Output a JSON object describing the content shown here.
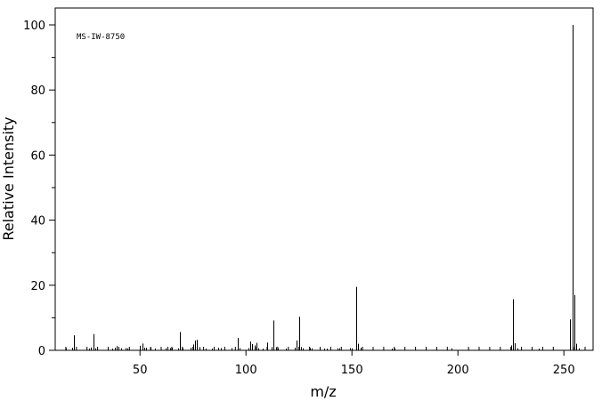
{
  "chart_data": {
    "type": "bar",
    "title": "",
    "annotation": "MS-IW-8750",
    "xlabel": "m/z",
    "ylabel": "Relative Intensity",
    "xlim": [
      10,
      263
    ],
    "ylim": [
      0,
      105
    ],
    "x_ticks": [
      50,
      100,
      150,
      200,
      250
    ],
    "x_tick_labels": [
      "50",
      "100",
      "150",
      "200",
      "250"
    ],
    "y_ticks": [
      0,
      20,
      40,
      60,
      80,
      100
    ],
    "y_tick_labels": [
      "0",
      "20",
      "40",
      "60",
      "80",
      "100"
    ],
    "grid": false,
    "bar_color": "#000000",
    "peaks": [
      {
        "mz": 15,
        "intensity": 0.6
      },
      {
        "mz": 18,
        "intensity": 0.8
      },
      {
        "mz": 19,
        "intensity": 4.6
      },
      {
        "mz": 26,
        "intensity": 0.5
      },
      {
        "mz": 27,
        "intensity": 0.9
      },
      {
        "mz": 28,
        "intensity": 5.0
      },
      {
        "mz": 29,
        "intensity": 0.6
      },
      {
        "mz": 37,
        "intensity": 0.5
      },
      {
        "mz": 38,
        "intensity": 0.8
      },
      {
        "mz": 39,
        "intensity": 1.3
      },
      {
        "mz": 41,
        "intensity": 0.6
      },
      {
        "mz": 43,
        "intensity": 0.7
      },
      {
        "mz": 44,
        "intensity": 0.6
      },
      {
        "mz": 50,
        "intensity": 1.4
      },
      {
        "mz": 51,
        "intensity": 2.1
      },
      {
        "mz": 52,
        "intensity": 0.8
      },
      {
        "mz": 53,
        "intensity": 0.8
      },
      {
        "mz": 55,
        "intensity": 0.9
      },
      {
        "mz": 57,
        "intensity": 0.5
      },
      {
        "mz": 62,
        "intensity": 0.6
      },
      {
        "mz": 63,
        "intensity": 1.1
      },
      {
        "mz": 64,
        "intensity": 0.7
      },
      {
        "mz": 65,
        "intensity": 0.8
      },
      {
        "mz": 68,
        "intensity": 0.6
      },
      {
        "mz": 69,
        "intensity": 5.6
      },
      {
        "mz": 70,
        "intensity": 0.7
      },
      {
        "mz": 74,
        "intensity": 0.8
      },
      {
        "mz": 75,
        "intensity": 1.8
      },
      {
        "mz": 76,
        "intensity": 3.0
      },
      {
        "mz": 77,
        "intensity": 3.2
      },
      {
        "mz": 78,
        "intensity": 1.0
      },
      {
        "mz": 81,
        "intensity": 0.5
      },
      {
        "mz": 84,
        "intensity": 0.5
      },
      {
        "mz": 87,
        "intensity": 0.8
      },
      {
        "mz": 88,
        "intensity": 0.7
      },
      {
        "mz": 93,
        "intensity": 0.7
      },
      {
        "mz": 96,
        "intensity": 3.8
      },
      {
        "mz": 97,
        "intensity": 0.7
      },
      {
        "mz": 101,
        "intensity": 0.7
      },
      {
        "mz": 102,
        "intensity": 2.7
      },
      {
        "mz": 103,
        "intensity": 1.9
      },
      {
        "mz": 104,
        "intensity": 1.5
      },
      {
        "mz": 105,
        "intensity": 2.3
      },
      {
        "mz": 106,
        "intensity": 0.6
      },
      {
        "mz": 108,
        "intensity": 0.5
      },
      {
        "mz": 110,
        "intensity": 2.4
      },
      {
        "mz": 112,
        "intensity": 1.0
      },
      {
        "mz": 113,
        "intensity": 9.2
      },
      {
        "mz": 114,
        "intensity": 1.0
      },
      {
        "mz": 115,
        "intensity": 0.6
      },
      {
        "mz": 119,
        "intensity": 0.5
      },
      {
        "mz": 123,
        "intensity": 0.8
      },
      {
        "mz": 124,
        "intensity": 3.0
      },
      {
        "mz": 125,
        "intensity": 10.3
      },
      {
        "mz": 126,
        "intensity": 1.0
      },
      {
        "mz": 127,
        "intensity": 0.6
      },
      {
        "mz": 130,
        "intensity": 0.7
      },
      {
        "mz": 131,
        "intensity": 0.6
      },
      {
        "mz": 137,
        "intensity": 0.5
      },
      {
        "mz": 138,
        "intensity": 0.5
      },
      {
        "mz": 143,
        "intensity": 0.6
      },
      {
        "mz": 144,
        "intensity": 0.6
      },
      {
        "mz": 149,
        "intensity": 0.7
      },
      {
        "mz": 150,
        "intensity": 0.6
      },
      {
        "mz": 152,
        "intensity": 19.5
      },
      {
        "mz": 153,
        "intensity": 2.0
      },
      {
        "mz": 154,
        "intensity": 0.8
      },
      {
        "mz": 169,
        "intensity": 0.5
      },
      {
        "mz": 170,
        "intensity": 0.6
      },
      {
        "mz": 197,
        "intensity": 0.6
      },
      {
        "mz": 225,
        "intensity": 1.5
      },
      {
        "mz": 226,
        "intensity": 15.7
      },
      {
        "mz": 227,
        "intensity": 2.2
      },
      {
        "mz": 228,
        "intensity": 0.6
      },
      {
        "mz": 238,
        "intensity": 0.5
      },
      {
        "mz": 253,
        "intensity": 9.5
      },
      {
        "mz": 254,
        "intensity": 100
      },
      {
        "mz": 255,
        "intensity": 17.0
      },
      {
        "mz": 256,
        "intensity": 2.0
      },
      {
        "mz": 257,
        "intensity": 0.6
      }
    ]
  }
}
